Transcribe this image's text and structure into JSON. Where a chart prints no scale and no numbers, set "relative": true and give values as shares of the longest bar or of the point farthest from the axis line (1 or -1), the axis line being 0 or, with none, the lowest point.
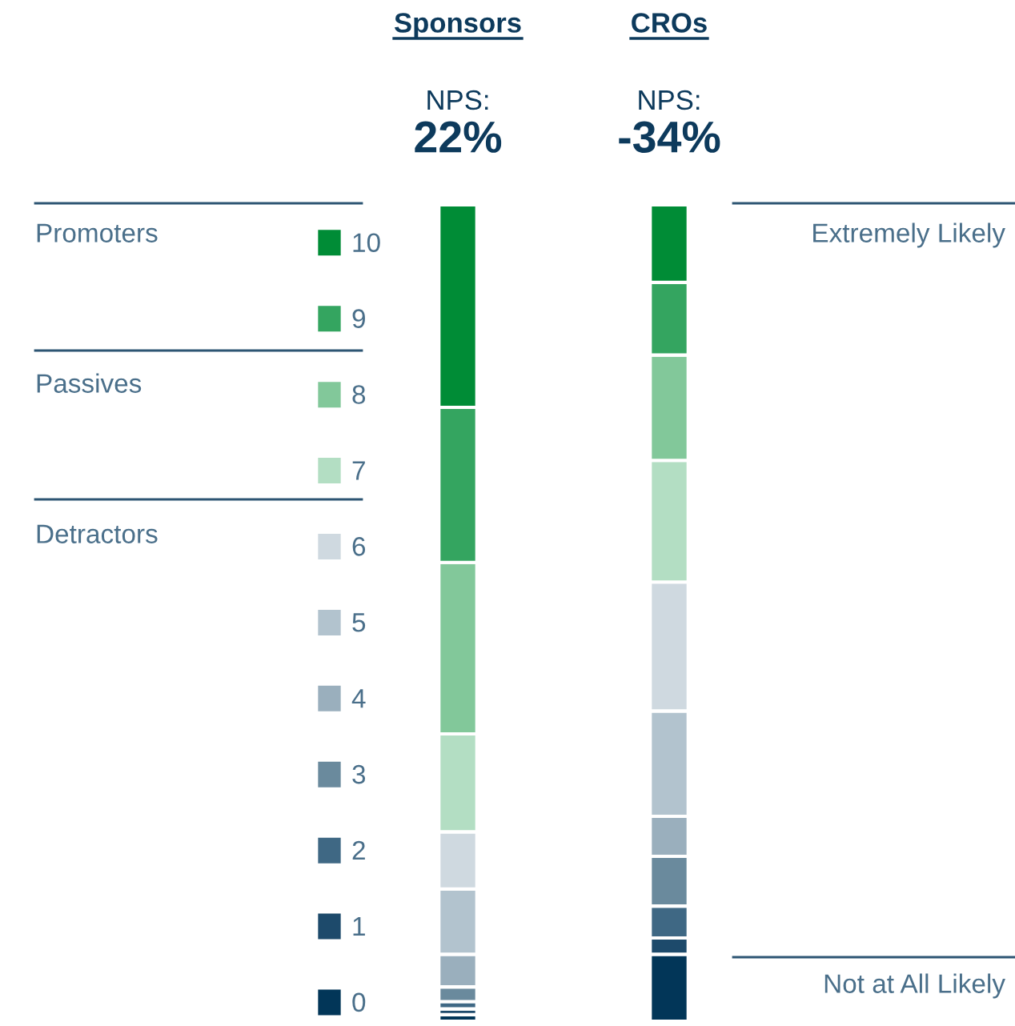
{
  "chart_data": {
    "type": "bar",
    "stacked": true,
    "relative": true,
    "categories": [
      "Sponsors",
      "CROs"
    ],
    "series": [
      {
        "name": "0",
        "color": "#023658",
        "values": [
          0.008,
          0.082
        ]
      },
      {
        "name": "1",
        "color": "#1d4a6b",
        "values": [
          0.007,
          0.02
        ]
      },
      {
        "name": "2",
        "color": "#3f6884",
        "values": [
          0.009,
          0.039
        ]
      },
      {
        "name": "3",
        "color": "#6a8a9d",
        "values": [
          0.018,
          0.061
        ]
      },
      {
        "name": "4",
        "color": "#9aafbd",
        "values": [
          0.04,
          0.049
        ]
      },
      {
        "name": "5",
        "color": "#b2c3ce",
        "values": [
          0.08,
          0.129
        ]
      },
      {
        "name": "6",
        "color": "#cfd9e0",
        "values": [
          0.07,
          0.158
        ]
      },
      {
        "name": "7",
        "color": "#b3dec3",
        "values": [
          0.12,
          0.149
        ]
      },
      {
        "name": "8",
        "color": "#82c89a",
        "values": [
          0.21,
          0.129
        ]
      },
      {
        "name": "9",
        "color": "#34a560",
        "values": [
          0.19,
          0.089
        ]
      },
      {
        "name": "10",
        "color": "#008c36",
        "values": [
          0.248,
          0.095
        ]
      }
    ],
    "legend": "left",
    "grid": false,
    "annotations": [
      "NPS:",
      "22%",
      "NPS:",
      "-34%",
      "Promoters",
      "Passives",
      "Detractors",
      "Extremely Likely",
      "Not at All Likely"
    ]
  }
}
